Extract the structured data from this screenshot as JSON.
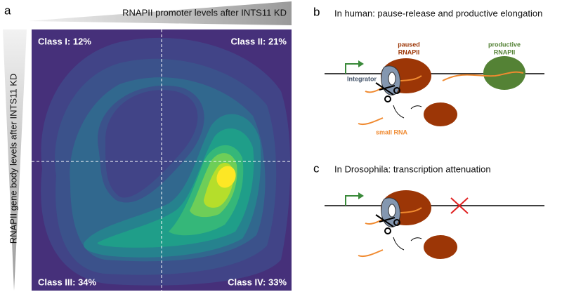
{
  "panel_a": {
    "label": "a",
    "x_axis_label": "RNAPII promoter levels after INTS11 KD",
    "y_axis_label": "RNAPII gene body levels after INTS11 KD",
    "quadrants": [
      "Class I: 12%",
      "Class II: 21%",
      "Class III: 34%",
      "Class IV: 33%"
    ]
  },
  "panel_b": {
    "label": "b",
    "title": "In human: pause-release and productive elongation",
    "paused_label": [
      "paused",
      "RNAPII"
    ],
    "productive_label": [
      "productive",
      "RNAPII"
    ],
    "integrator_label": "Integrator",
    "small_rna_label": "small RNA"
  },
  "panel_c": {
    "label": "c",
    "title": "In Drosophila: transcription attenuation"
  }
}
